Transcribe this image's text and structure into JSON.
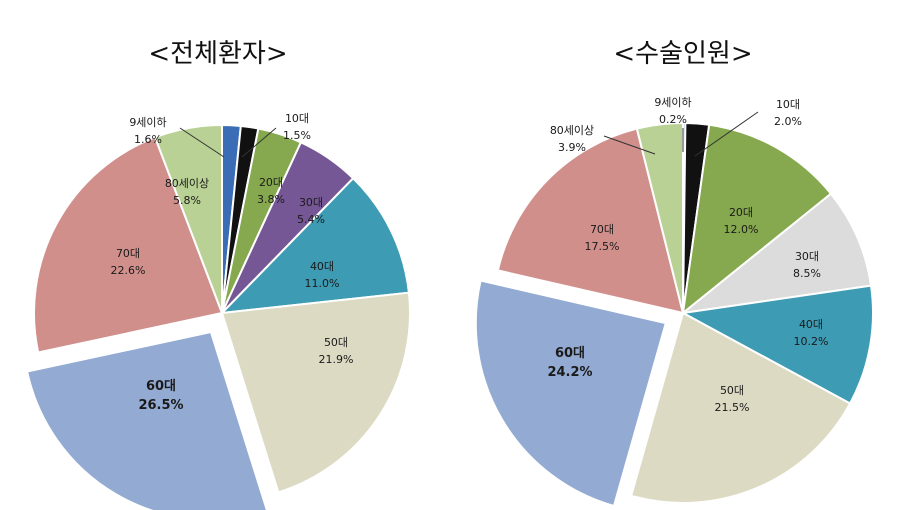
{
  "chart_data": [
    {
      "type": "pie",
      "title": "<전체환자>",
      "categories": [
        "9세이하",
        "10대",
        "20대",
        "30대",
        "40대",
        "50대",
        "60대",
        "70대",
        "80세이상"
      ],
      "values": [
        1.6,
        1.5,
        3.8,
        5.4,
        11.0,
        21.9,
        26.5,
        22.6,
        5.8
      ],
      "value_labels": [
        "1.6%",
        "1.5%",
        "3.8%",
        "5.4%",
        "11.0%",
        "21.9%",
        "26.5%",
        "22.6%",
        "5.8%"
      ],
      "colors": [
        "#3a6db5",
        "#111111",
        "#86a84e",
        "#765796",
        "#3d9bb4",
        "#dcdac2",
        "#93abd2",
        "#d18f8c",
        "#b9d195"
      ],
      "exploded": [
        "60대"
      ],
      "bold_labels": [
        "60대"
      ]
    },
    {
      "type": "pie",
      "title": "<수술인원>",
      "categories": [
        "9세이하",
        "10대",
        "20대",
        "30대",
        "40대",
        "50대",
        "60대",
        "70대",
        "80세이상"
      ],
      "values": [
        0.2,
        2.0,
        12.0,
        8.5,
        10.2,
        21.5,
        24.2,
        17.5,
        3.9
      ],
      "value_labels": [
        "0.2%",
        "2.0%",
        "12.0%",
        "8.5%",
        "10.2%",
        "21.5%",
        "24.2%",
        "17.5%",
        "3.9%"
      ],
      "colors": [
        "#3a6db5",
        "#111111",
        "#86a84e",
        "#dcdcdc",
        "#3d9bb4",
        "#dcdac2",
        "#93abd2",
        "#d18f8c",
        "#b9d195"
      ],
      "exploded": [
        "60대"
      ],
      "bold_labels": [
        "60대"
      ]
    }
  ]
}
